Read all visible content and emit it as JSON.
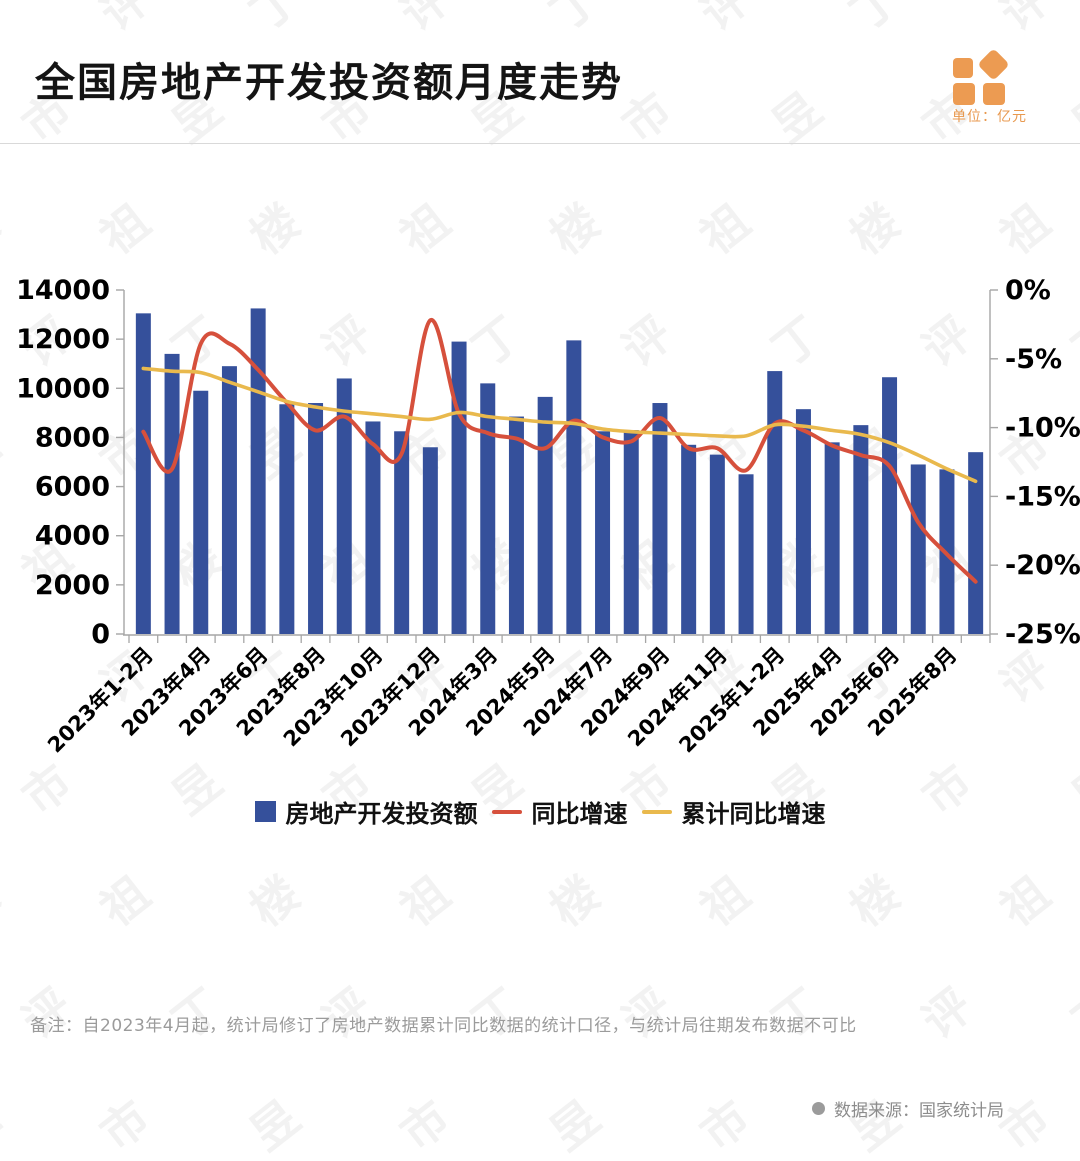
{
  "header": {
    "title": "全国房地产开发投资额月度走势",
    "unit_label": "单位：亿元"
  },
  "chart_data": {
    "type": "bar",
    "subtype": "bar-line-combo",
    "grid": false,
    "legend_position": "bottom",
    "categories": [
      "2023年1-2月",
      "2023年3月",
      "2023年4月",
      "2023年5月",
      "2023年6月",
      "2023年7月",
      "2023年8月",
      "2023年9月",
      "2023年10月",
      "2023年11月",
      "2023年12月",
      "2024年1-2月",
      "2024年3月",
      "2024年4月",
      "2024年5月",
      "2024年6月",
      "2024年7月",
      "2024年8月",
      "2024年9月",
      "2024年10月",
      "2024年11月",
      "2024年12月",
      "2025年1-2月",
      "2025年3月",
      "2025年4月",
      "2025年5月",
      "2025年6月",
      "2025年7月",
      "2025年8月",
      "2025年9月"
    ],
    "x_tick_labels": [
      "2023年1-2月",
      "2023年4月",
      "2023年6月",
      "2023年8月",
      "2023年10月",
      "2023年12月",
      "2024年3月",
      "2024年5月",
      "2024年7月",
      "2024年9月",
      "2024年11月",
      "2025年1-2月",
      "2025年4月",
      "2025年6月",
      "2025年8月"
    ],
    "series": [
      {
        "name": "房地产开发投资额",
        "type": "bar",
        "axis": "left",
        "color": "#35509B",
        "values": [
          13050,
          11400,
          9900,
          10900,
          13250,
          9350,
          9400,
          10400,
          8650,
          8250,
          7600,
          11900,
          10200,
          8850,
          9650,
          11950,
          8250,
          8300,
          9400,
          7700,
          7300,
          6500,
          10700,
          9150,
          7800,
          8500,
          10450,
          6900,
          6700,
          7400
        ]
      },
      {
        "name": "同比增速",
        "type": "line",
        "axis": "right",
        "color": "#D6503C",
        "values": [
          -10.3,
          -13.0,
          -3.9,
          -3.9,
          -5.8,
          -8.2,
          -10.2,
          -9.2,
          -11.2,
          -11.9,
          -2.2,
          -9.0,
          -10.4,
          -10.8,
          -11.5,
          -9.5,
          -10.7,
          -11.0,
          -9.3,
          -11.5,
          -11.5,
          -13.1,
          -9.7,
          -10.2,
          -11.3,
          -12.0,
          -12.8,
          -16.9,
          -19.2,
          -21.2
        ]
      },
      {
        "name": "累计同比增速",
        "type": "line",
        "axis": "right",
        "color": "#E9B94D",
        "values": [
          -5.7,
          -5.9,
          -6.0,
          -6.7,
          -7.4,
          -8.1,
          -8.5,
          -8.8,
          -9.0,
          -9.2,
          -9.4,
          -8.9,
          -9.2,
          -9.4,
          -9.6,
          -9.7,
          -10.1,
          -10.3,
          -10.4,
          -10.5,
          -10.6,
          -10.6,
          -9.8,
          -9.9,
          -10.2,
          -10.5,
          -11.1,
          -12.0,
          -13.0,
          -13.9
        ]
      }
    ],
    "left_axis": {
      "min": 0,
      "max": 14000,
      "step": 2000,
      "ticks": [
        "14000",
        "12000",
        "10000",
        "8000",
        "6000",
        "4000",
        "2000",
        "0"
      ]
    },
    "right_axis": {
      "min": -25,
      "max": 0,
      "step": 5,
      "ticks": [
        "0%",
        "-5%",
        "-10%",
        "-15%",
        "-20%",
        "-25%"
      ]
    }
  },
  "legend": {
    "items": [
      {
        "label": "房地产开发投资额",
        "marker": "square",
        "color": "#35509B"
      },
      {
        "label": "同比增速",
        "marker": "line",
        "color": "#D6503C"
      },
      {
        "label": "累计同比增速",
        "marker": "line",
        "color": "#E9B94D"
      }
    ]
  },
  "footer": {
    "note": "备注：自2023年4月起，统计局修订了房地产数据累计同比数据的统计口径，与统计局往期发布数据不可比",
    "source": "数据来源：国家统计局"
  },
  "watermark": {
    "text": "丁祖昱评楼市"
  },
  "colors": {
    "axis_line": "#A6A6A6",
    "tick_text": "#000000",
    "note_text": "#9B9B9B",
    "accent_orange": "#EC9B52"
  }
}
